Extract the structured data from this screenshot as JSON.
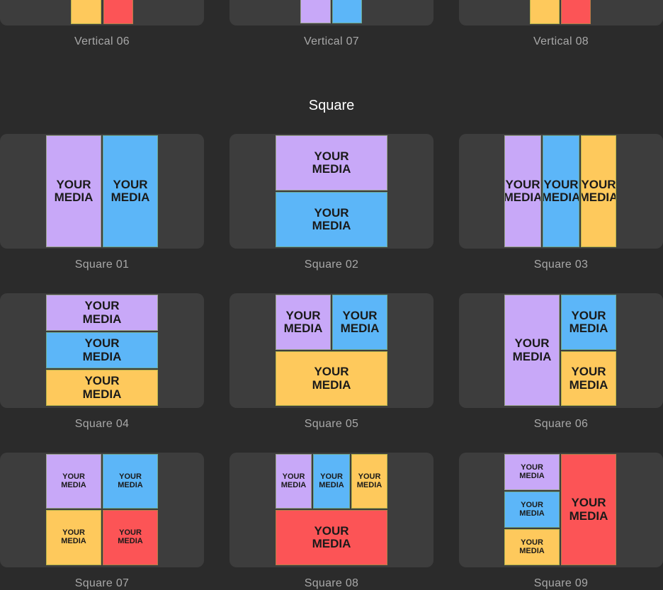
{
  "tile_label": "YOUR MEDIA",
  "section_heading": "Square",
  "colors": {
    "purple": "#c8a8f8",
    "blue": "#5cb6f8",
    "yellow": "#fec95c",
    "red": "#fc5456",
    "background": "#2b2b2b",
    "card": "#3d3d3d"
  },
  "templates": [
    {
      "label": "Vertical 06"
    },
    {
      "label": "Vertical 07"
    },
    {
      "label": "Vertical 08"
    },
    {
      "label": "Square 01"
    },
    {
      "label": "Square 02"
    },
    {
      "label": "Square 03"
    },
    {
      "label": "Square 04"
    },
    {
      "label": "Square 05"
    },
    {
      "label": "Square 06"
    },
    {
      "label": "Square 07"
    },
    {
      "label": "Square 08"
    },
    {
      "label": "Square 09"
    }
  ]
}
